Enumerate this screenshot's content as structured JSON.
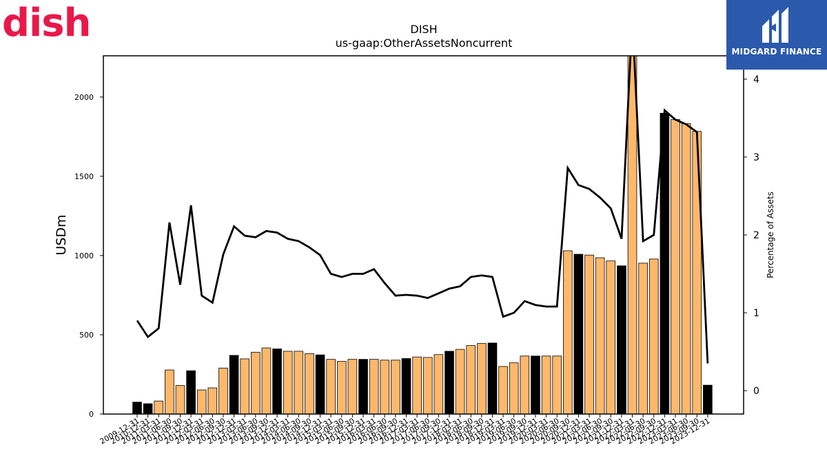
{
  "branding": {
    "left_logo_text": "dish",
    "right_logo_text": "MIDGARD FINANCE"
  },
  "colors": {
    "bar_orange": "#ffb86b",
    "bar_black": "#000000",
    "line": "#000000",
    "dish_red": "#e8194a",
    "midgard_blue": "#2b5aad"
  },
  "chart_data": {
    "type": "bar",
    "title": "DISH",
    "subtitle": "us-gaap:OtherAssetsNoncurrent",
    "ylabel": "USDm",
    "y2label": "Percentage of Assets",
    "ylim": [
      0,
      2260
    ],
    "y2lim": [
      -0.3,
      4.3
    ],
    "yticks": [
      0,
      500,
      1000,
      1500,
      2000
    ],
    "y2ticks": [
      0,
      1,
      2,
      3,
      4
    ],
    "grid": false,
    "categories": [
      "2009-12-31",
      "2010-12-31",
      "2011-03-31",
      "2011-06-30",
      "2011-09-30",
      "2011-12-31",
      "2012-03-31",
      "2012-06-30",
      "2012-09-30",
      "2012-12-31",
      "2013-03-31",
      "2013-06-30",
      "2013-09-30",
      "2013-12-31",
      "2014-03-31",
      "2014-06-30",
      "2014-09-30",
      "2014-12-31",
      "2015-03-31",
      "2015-06-30",
      "2015-09-30",
      "2015-12-31",
      "2016-03-31",
      "2016-06-30",
      "2016-09-30",
      "2016-12-31",
      "2017-03-31",
      "2017-06-30",
      "2017-09-30",
      "2017-12-31",
      "2018-03-31",
      "2018-06-30",
      "2018-09-30",
      "2018-12-31",
      "2019-03-31",
      "2019-06-30",
      "2019-09-30",
      "2019-12-31",
      "2020-03-31",
      "2020-06-30",
      "2020-09-30",
      "2020-12-31",
      "2021-03-31",
      "2021-06-30",
      "2021-09-30",
      "2021-12-31",
      "2022-03-31",
      "2022-06-30",
      "2022-09-30",
      "2022-12-31",
      "2023-03-31",
      "2023-06-30",
      "2023-09-30",
      "2023-12-31"
    ],
    "series": [
      {
        "type": "bar",
        "values": [
          75,
          65,
          82,
          278,
          180,
          273,
          152,
          165,
          290,
          370,
          348,
          390,
          417,
          411,
          396,
          396,
          381,
          373,
          345,
          332,
          345,
          345,
          345,
          340,
          340,
          350,
          360,
          357,
          375,
          396,
          408,
          432,
          445,
          448,
          300,
          323,
          366,
          366,
          366,
          366,
          1030,
          1008,
          1003,
          986,
          966,
          935,
          2290,
          952,
          978,
          1898,
          1858,
          1832,
          1783,
          182
        ],
        "bar_colors": [
          "#000000",
          "#000000",
          "#ffb86b",
          "#ffb86b",
          "#ffb86b",
          "#000000",
          "#ffb86b",
          "#ffb86b",
          "#ffb86b",
          "#000000",
          "#ffb86b",
          "#ffb86b",
          "#ffb86b",
          "#000000",
          "#ffb86b",
          "#ffb86b",
          "#ffb86b",
          "#000000",
          "#ffb86b",
          "#ffb86b",
          "#ffb86b",
          "#000000",
          "#ffb86b",
          "#ffb86b",
          "#ffb86b",
          "#000000",
          "#ffb86b",
          "#ffb86b",
          "#ffb86b",
          "#000000",
          "#ffb86b",
          "#ffb86b",
          "#ffb86b",
          "#000000",
          "#ffb86b",
          "#ffb86b",
          "#ffb86b",
          "#000000",
          "#ffb86b",
          "#ffb86b",
          "#ffb86b",
          "#000000",
          "#ffb86b",
          "#ffb86b",
          "#ffb86b",
          "#000000",
          "#ffb86b",
          "#ffb86b",
          "#ffb86b",
          "#000000",
          "#ffb86b",
          "#ffb86b",
          "#ffb86b",
          "#000000"
        ]
      },
      {
        "type": "line",
        "axis": "right",
        "values": [
          0.9,
          0.69,
          0.8,
          2.16,
          1.36,
          2.38,
          1.22,
          1.13,
          1.75,
          2.11,
          1.99,
          1.97,
          2.05,
          2.03,
          1.95,
          1.92,
          1.84,
          1.74,
          1.5,
          1.46,
          1.5,
          1.5,
          1.56,
          1.38,
          1.22,
          1.23,
          1.22,
          1.19,
          1.25,
          1.31,
          1.34,
          1.46,
          1.48,
          1.46,
          0.95,
          1.0,
          1.15,
          1.1,
          1.08,
          1.08,
          2.86,
          2.64,
          2.59,
          2.48,
          2.34,
          1.95,
          4.8,
          1.92,
          2.0,
          3.6,
          3.48,
          3.42,
          3.32,
          0.35
        ]
      }
    ]
  }
}
